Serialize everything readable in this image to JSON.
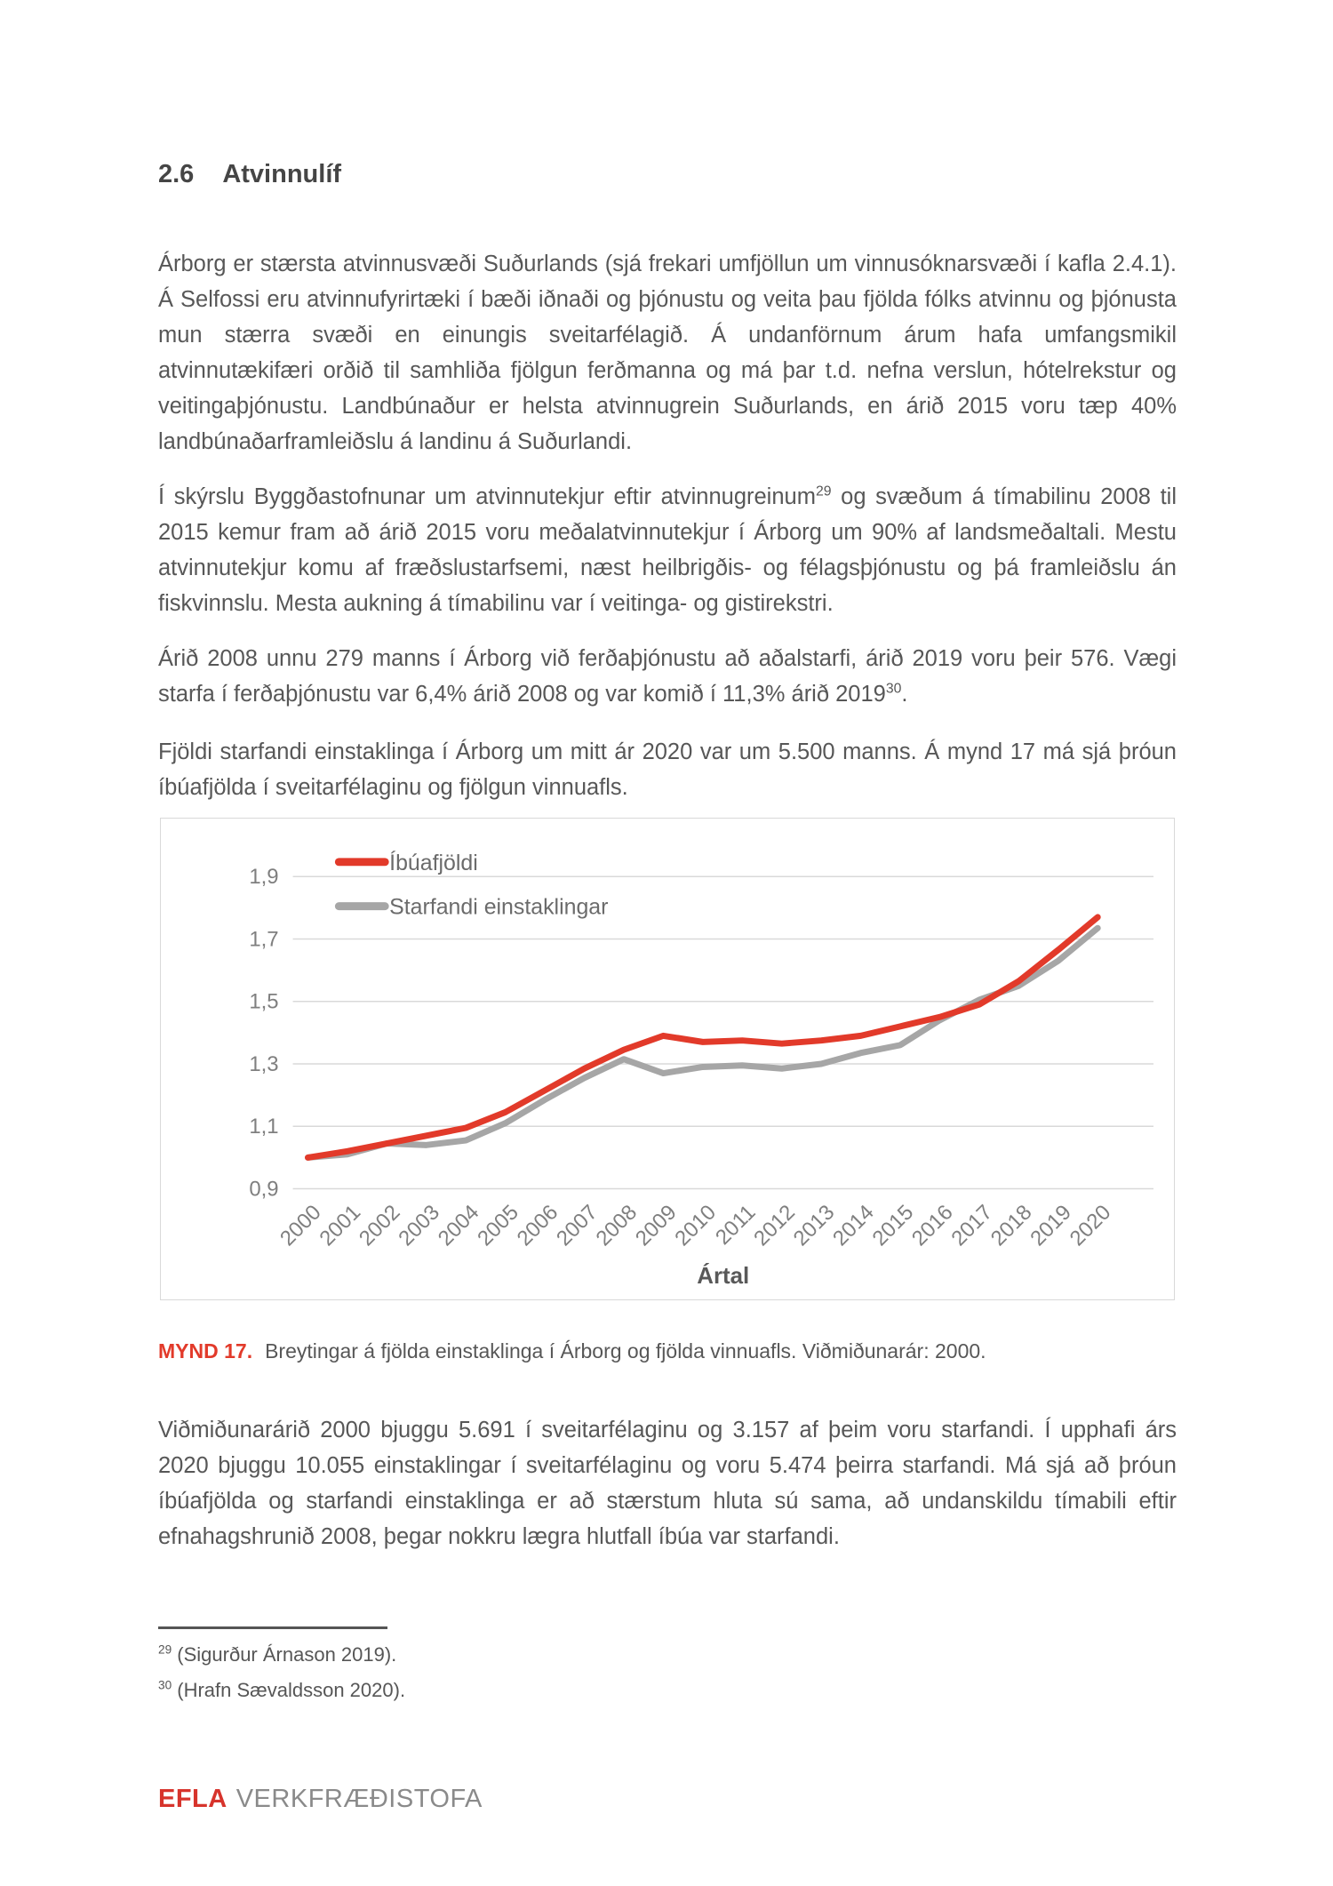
{
  "heading": {
    "number": "2.6",
    "title": "Atvinnulíf"
  },
  "paragraphs": [
    {
      "parts": [
        {
          "text": "Árborg er stærsta atvinnusvæði Suðurlands (sjá frekari umfjöllun um vinnusóknarsvæði í kafla 2.4.1). Á Selfossi eru atvinnufyrirtæki í bæði iðnaði og þjónustu og veita þau fjölda fólks atvinnu og þjónusta mun stærra svæði en einungis sveitarfélagið. Á undanförnum árum hafa umfangsmikil atvinnutækifæri orðið til samhliða fjölgun ferðmanna og má þar t.d. nefna verslun, hótelrekstur og veitingaþjónustu. Landbúnaður er helsta atvinnugrein Suðurlands, en árið 2015 voru tæp 40% landbúnaðarframleiðslu á landinu á Suðurlandi."
        }
      ]
    },
    {
      "parts": [
        {
          "text": "Í skýrslu Byggðastofnunar um atvinnutekjur eftir atvinnugreinum"
        },
        {
          "sup": "29"
        },
        {
          "text": " og svæðum á tímabilinu 2008 til 2015 kemur fram að árið 2015 voru meðalatvinnutekjur í Árborg um 90% af landsmeðaltali. Mestu atvinnutekjur komu af fræðslustarfsemi, næst heilbrigðis- og félagsþjónustu og þá framleiðslu án fiskvinnslu. Mesta aukning á tímabilinu var í veitinga- og gistirekstri."
        }
      ]
    },
    {
      "parts": [
        {
          "text": "Árið 2008 unnu 279 manns í Árborg við ferðaþjónustu að aðalstarfi, árið 2019 voru þeir 576. Vægi starfa í ferðaþjónustu var 6,4% árið 2008 og var komið í 11,3% árið 2019"
        },
        {
          "sup": "30"
        },
        {
          "text": "."
        }
      ]
    },
    {
      "parts": [
        {
          "text": "Fjöldi starfandi einstaklinga í Árborg um mitt ár 2020 var um 5.500 manns. Á mynd 17 má sjá þróun íbúafjölda í sveitarfélaginu og fjölgun vinnuafls."
        }
      ]
    }
  ],
  "figure": {
    "caption_label": "MYND 17.",
    "caption_text": "Breytingar á fjölda einstaklinga í Árborg og fjölda vinnuafls. Viðmiðunarár: 2000."
  },
  "body_after": {
    "parts": [
      {
        "text": "Viðmiðunarárið 2000 bjuggu 5.691 í sveitarfélaginu og 3.157 af þeim voru starfandi. Í upphafi árs 2020 bjuggu 10.055 einstaklingar í sveitarfélaginu og voru 5.474 þeirra starfandi. Má sjá að þróun íbúafjölda og starfandi einstaklinga er að stærstum hluta sú sama, að undanskildu tímabili eftir efnahagshrunið 2008, þegar nokkru lægra hlutfall íbúa var starfandi."
      }
    ]
  },
  "footnotes": [
    {
      "marker": "29",
      "text": " (Sigurður Árnason 2019)."
    },
    {
      "marker": "30",
      "text": " (Hrafn Sævaldsson 2020)."
    }
  ],
  "footer": {
    "brand": "EFLA",
    "name": "VERKFRÆÐISTOFA"
  },
  "colors": {
    "accent_red": "#e23a2a",
    "brand_red": "#d7342c",
    "line_gray": "#a6a6a6",
    "grid": "#d9d9d9",
    "axis_text": "#7f7f7f",
    "legend_text": "#6b6b6b",
    "axis_title_text": "#595959",
    "body_text": "#575757"
  },
  "chart_data": {
    "type": "line",
    "title": "",
    "x": [
      2000,
      2001,
      2002,
      2003,
      2004,
      2005,
      2006,
      2007,
      2008,
      2009,
      2010,
      2011,
      2012,
      2013,
      2014,
      2015,
      2016,
      2017,
      2018,
      2019,
      2020
    ],
    "series": [
      {
        "name": "Íbúafjöldi",
        "color": "#e23a2a",
        "values": [
          1.0,
          1.02,
          1.045,
          1.07,
          1.095,
          1.145,
          1.215,
          1.285,
          1.345,
          1.39,
          1.37,
          1.375,
          1.365,
          1.375,
          1.39,
          1.42,
          1.45,
          1.49,
          1.565,
          1.665,
          1.77
        ]
      },
      {
        "name": "Starfandi einstaklingar",
        "color": "#a6a6a6",
        "values": [
          1.0,
          1.01,
          1.045,
          1.04,
          1.055,
          1.11,
          1.185,
          1.255,
          1.315,
          1.27,
          1.29,
          1.295,
          1.285,
          1.3,
          1.335,
          1.36,
          1.44,
          1.505,
          1.55,
          1.63,
          1.735
        ]
      }
    ],
    "xlabel": "Ártal",
    "ylabel": "",
    "ylim": [
      0.9,
      1.9
    ],
    "yticks": [
      {
        "value": 0.9,
        "label": "0,9"
      },
      {
        "value": 1.1,
        "label": "1,1"
      },
      {
        "value": 1.3,
        "label": "1,3"
      },
      {
        "value": 1.5,
        "label": "1,5"
      },
      {
        "value": 1.7,
        "label": "1,7"
      },
      {
        "value": 1.9,
        "label": "1,9"
      }
    ],
    "grid": "horizontal",
    "legend_position": "top-left"
  }
}
